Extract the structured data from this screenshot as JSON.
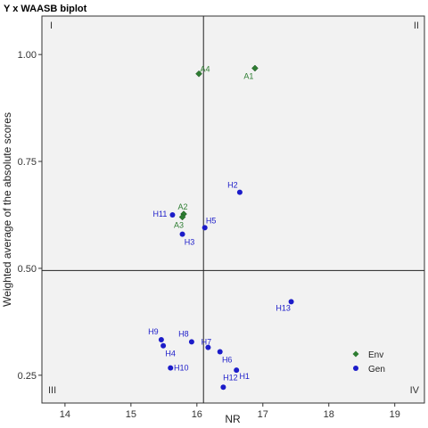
{
  "chart_data": {
    "type": "scatter",
    "title": "Y x WAASB biplot",
    "xlabel": "NR",
    "ylabel": "Weighted average of the absolute scores",
    "xlim": [
      13.65,
      19.45
    ],
    "ylim": [
      0.185,
      1.09
    ],
    "x_ticks": [
      14,
      15,
      16,
      17,
      18,
      19
    ],
    "y_ticks": [
      0.25,
      0.5,
      0.75,
      1.0
    ],
    "y_tick_labels": [
      "0.25",
      "0.50",
      "0.75",
      "1.00"
    ],
    "reference_lines": {
      "x": 16.1,
      "y": 0.495
    },
    "quadrants": [
      "I",
      "II",
      "III",
      "IV"
    ],
    "grid": false,
    "legend": {
      "position": "bottom-right",
      "entries": [
        "Env",
        "Gen"
      ]
    },
    "colors": {
      "Env": "#2e7d32",
      "Gen": "#1c1cc9"
    },
    "series": [
      {
        "name": "Env",
        "marker": "diamond",
        "points": [
          {
            "label": "A4",
            "x": 16.03,
            "y": 0.955
          },
          {
            "label": "A1",
            "x": 16.88,
            "y": 0.968
          },
          {
            "label": "A2",
            "x": 15.8,
            "y": 0.627
          },
          {
            "label": "A3",
            "x": 15.78,
            "y": 0.62
          }
        ]
      },
      {
        "name": "Gen",
        "marker": "circle",
        "points": [
          {
            "label": "H2",
            "x": 16.65,
            "y": 0.678
          },
          {
            "label": "H11",
            "x": 15.63,
            "y": 0.625
          },
          {
            "label": "H5",
            "x": 16.12,
            "y": 0.595
          },
          {
            "label": "H3",
            "x": 15.78,
            "y": 0.58
          },
          {
            "label": "H13",
            "x": 17.43,
            "y": 0.422
          },
          {
            "label": "H9",
            "x": 15.46,
            "y": 0.333
          },
          {
            "label": "H4",
            "x": 15.49,
            "y": 0.319
          },
          {
            "label": "H8",
            "x": 15.92,
            "y": 0.328
          },
          {
            "label": "H7",
            "x": 16.17,
            "y": 0.315
          },
          {
            "label": "H6",
            "x": 16.35,
            "y": 0.305
          },
          {
            "label": "H10",
            "x": 15.6,
            "y": 0.267
          },
          {
            "label": "H1",
            "x": 16.6,
            "y": 0.262
          },
          {
            "label": "H12",
            "x": 16.4,
            "y": 0.222
          }
        ]
      }
    ]
  }
}
